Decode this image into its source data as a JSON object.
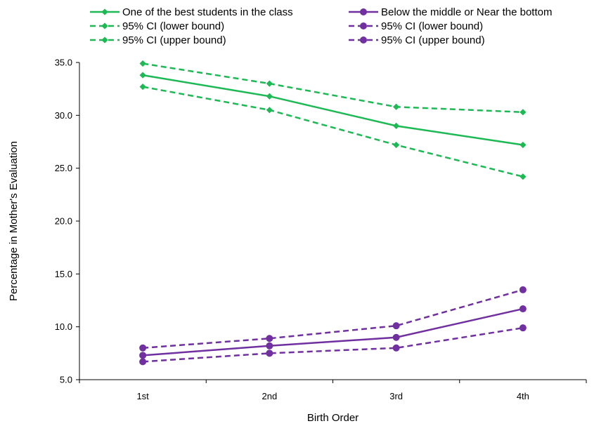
{
  "chart_data": {
    "type": "line",
    "title": "",
    "xlabel": "Birth Order",
    "ylabel": "Percentage in Mother's Evaluation",
    "categories": [
      "1st",
      "2nd",
      "3rd",
      "4th"
    ],
    "ylim": [
      5.0,
      35.0
    ],
    "yticks": [
      "5.0",
      "10.0",
      "15.0",
      "20.0",
      "25.0",
      "30.0",
      "35.0"
    ],
    "grid": false,
    "legend_position": "top",
    "series": [
      {
        "name": "One of the best students in the class",
        "values": [
          33.8,
          31.8,
          29.0,
          27.2
        ],
        "color": "#1db954",
        "dash": "solid",
        "marker": "diamond"
      },
      {
        "name": "95% CI (lower bound)",
        "values": [
          32.7,
          30.5,
          27.2,
          24.2
        ],
        "color": "#1db954",
        "dash": "dashed",
        "marker": "diamond"
      },
      {
        "name": "95% CI (upper bound)",
        "values": [
          34.9,
          33.0,
          30.8,
          30.3
        ],
        "color": "#1db954",
        "dash": "dashed",
        "marker": "diamond"
      },
      {
        "name": "Below the middle or Near the bottom",
        "values": [
          7.3,
          8.2,
          9.0,
          11.7
        ],
        "color": "#7030a0",
        "dash": "solid",
        "marker": "circle"
      },
      {
        "name": "95% CI (lower bound)",
        "values": [
          6.7,
          7.5,
          8.0,
          9.9
        ],
        "color": "#7030a0",
        "dash": "dashed",
        "marker": "circle"
      },
      {
        "name": "95% CI (upper bound)",
        "values": [
          8.0,
          8.9,
          10.1,
          13.5
        ],
        "color": "#7030a0",
        "dash": "dashed",
        "marker": "circle"
      }
    ]
  }
}
